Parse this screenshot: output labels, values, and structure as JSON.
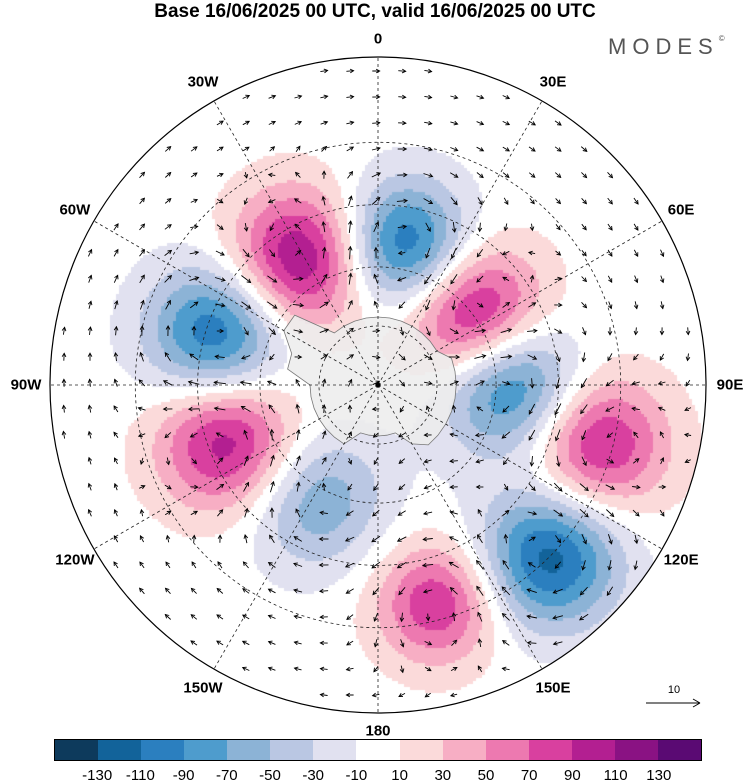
{
  "title": "Base 16/06/2025 00 UTC, valid 16/06/2025 00 UTC",
  "logo": "MODES",
  "logo_mark": "©",
  "longitude_labels": [
    {
      "text": "0",
      "lon": 0
    },
    {
      "text": "30E",
      "lon": 30
    },
    {
      "text": "60E",
      "lon": 60
    },
    {
      "text": "90E",
      "lon": 90
    },
    {
      "text": "120E",
      "lon": 120
    },
    {
      "text": "150E",
      "lon": 150
    },
    {
      "text": "180",
      "lon": 180
    },
    {
      "text": "150W",
      "lon": -150
    },
    {
      "text": "120W",
      "lon": -120
    },
    {
      "text": "90W",
      "lon": -90
    },
    {
      "text": "60W",
      "lon": -60
    },
    {
      "text": "30W",
      "lon": -30
    }
  ],
  "vector_scale": {
    "label": "10"
  },
  "colorbar": {
    "ticks": [
      "-130",
      "-110",
      "-90",
      "-70",
      "-50",
      "-30",
      "-10",
      "10",
      "30",
      "50",
      "70",
      "90",
      "110",
      "130"
    ],
    "colors": [
      "#0d3a5c",
      "#12639a",
      "#2b7fbf",
      "#4e9ccd",
      "#8cb3d6",
      "#bac7e3",
      "#e1e1f0",
      "#ffffff",
      "#fbdada",
      "#f7aec4",
      "#ed79b0",
      "#d9409f",
      "#b31f91",
      "#8a1283",
      "#5a0a73"
    ]
  },
  "map": {
    "projection": "south-polar-stereographic",
    "anomaly_centers": [
      {
        "lon": -32,
        "lat_ring": 0.63,
        "value": 120,
        "spread": 0.15
      },
      {
        "lon": 10,
        "lat_ring": 0.6,
        "value": -120,
        "spread": 0.14
      },
      {
        "lon": 55,
        "lat_ring": 0.5,
        "value": 130,
        "spread": 0.15
      },
      {
        "lon": 88,
        "lat_ring": 0.55,
        "value": -125,
        "spread": 0.15
      },
      {
        "lon": 105,
        "lat_ring": 0.95,
        "value": 100,
        "spread": 0.15
      },
      {
        "lon": 135,
        "lat_ring": 1.02,
        "value": -120,
        "spread": 0.15
      },
      {
        "lon": 165,
        "lat_ring": 0.95,
        "value": 90,
        "spread": 0.13
      },
      {
        "lon": -150,
        "lat_ring": 0.55,
        "value": -70,
        "spread": 0.15
      },
      {
        "lon": -110,
        "lat_ring": 0.68,
        "value": 110,
        "spread": 0.15
      },
      {
        "lon": -72,
        "lat_ring": 0.72,
        "value": -115,
        "spread": 0.15
      }
    ]
  }
}
